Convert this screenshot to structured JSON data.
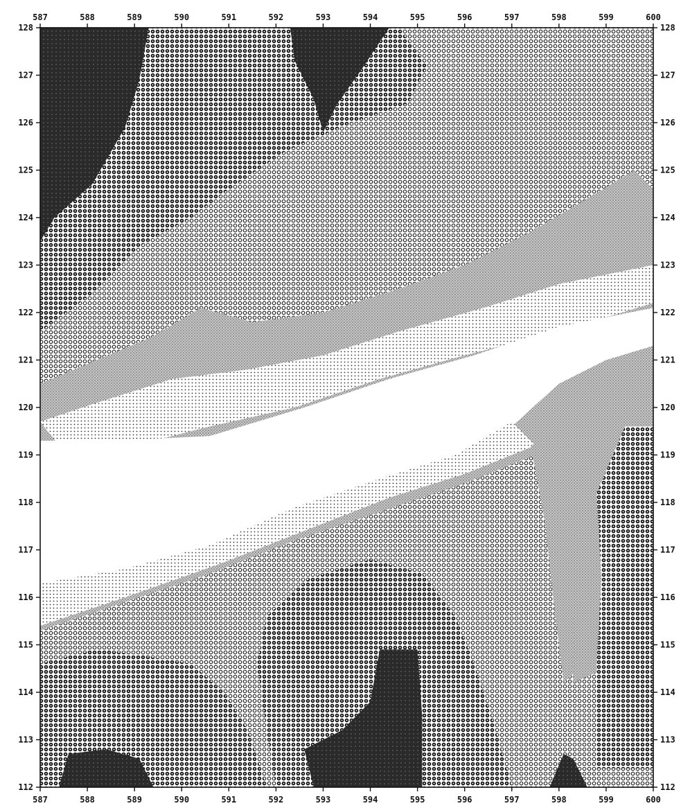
{
  "chart_data": {
    "type": "heatmap",
    "title": "",
    "xlabel": "",
    "ylabel": "",
    "xlim": [
      587,
      600
    ],
    "ylim": [
      112,
      128
    ],
    "x_ticks": [
      "587",
      "588",
      "589",
      "590",
      "591",
      "592",
      "593",
      "594",
      "595",
      "596",
      "597",
      "598",
      "599",
      "600"
    ],
    "y_ticks": [
      "128",
      "127",
      "126",
      "125",
      "124",
      "123",
      "122",
      "121",
      "120",
      "119",
      "118",
      "117",
      "116",
      "115",
      "114",
      "113",
      "112"
    ],
    "shading_levels": [
      {
        "level": 0,
        "pattern": "white (valley floor)"
      },
      {
        "level": 1,
        "pattern": "sparse dots"
      },
      {
        "level": 2,
        "pattern": "fine dots"
      },
      {
        "level": 3,
        "pattern": "stippled grey"
      },
      {
        "level": 4,
        "pattern": "small circles"
      },
      {
        "level": 5,
        "pattern": "filled circles"
      },
      {
        "level": 6,
        "pattern": "solid dark"
      }
    ],
    "colors": {
      "background": "#ffffff",
      "ink": "#111111"
    }
  }
}
